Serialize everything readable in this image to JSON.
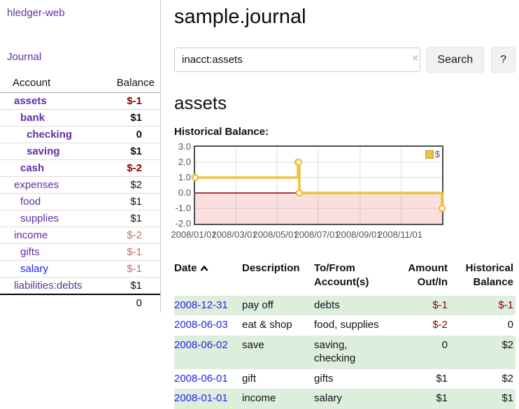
{
  "app": {
    "title": "hledger-web"
  },
  "nav": {
    "journal": "Journal"
  },
  "sidebar": {
    "header": {
      "account": "Account",
      "balance": "Balance"
    },
    "accounts": [
      {
        "name": "assets",
        "indent": 1,
        "bold": true,
        "balance": "$-1",
        "balance_style": "neg-strong"
      },
      {
        "name": "bank",
        "indent": 2,
        "bold": true,
        "balance": "$1",
        "balance_style": "pos"
      },
      {
        "name": "checking",
        "indent": 3,
        "bold": true,
        "balance": "0",
        "balance_style": "pos"
      },
      {
        "name": "saving",
        "indent": 3,
        "bold": true,
        "balance": "$1",
        "balance_style": "pos"
      },
      {
        "name": "cash",
        "indent": 2,
        "bold": true,
        "balance": "$-2",
        "balance_style": "neg-strong"
      },
      {
        "name": "expenses",
        "indent": 1,
        "bold": false,
        "balance": "$2",
        "balance_style": "pos"
      },
      {
        "name": "food",
        "indent": 2,
        "bold": false,
        "balance": "$1",
        "balance_style": "pos"
      },
      {
        "name": "supplies",
        "indent": 2,
        "bold": false,
        "balance": "$1",
        "balance_style": "pos"
      },
      {
        "name": "income",
        "indent": 1,
        "bold": false,
        "balance": "$-2",
        "balance_style": "neg-soft"
      },
      {
        "name": "gifts",
        "indent": 2,
        "bold": false,
        "balance": "$-1",
        "balance_style": "neg-soft"
      },
      {
        "name": "salary",
        "indent": 2,
        "bold": false,
        "color": "blue",
        "balance": "$-1",
        "balance_style": "neg-soft"
      },
      {
        "name": "liabilities:debts",
        "indent": 1,
        "bold": false,
        "balance": "$1",
        "balance_style": "pos"
      }
    ],
    "total": "0"
  },
  "page": {
    "title": "sample.journal"
  },
  "search": {
    "value": "inacct:assets",
    "clear": "×",
    "search_label": "Search",
    "help_label": "?"
  },
  "account_view": {
    "heading": "assets",
    "chart_title": "Historical Balance:"
  },
  "chart_data": {
    "type": "line",
    "line_style": "step",
    "title": "Historical Balance",
    "series": [
      {
        "name": "$",
        "color": "#edc240",
        "points": [
          [
            "2008-01-01",
            1
          ],
          [
            "2008-06-01",
            2
          ],
          [
            "2008-06-02",
            2
          ],
          [
            "2008-06-03",
            0
          ],
          [
            "2008-12-31",
            -1
          ]
        ]
      }
    ],
    "x_range": [
      "2008-01-01",
      "2008-12-31"
    ],
    "x_ticks": [
      "2008/01/01",
      "2008/03/01",
      "2008/05/01",
      "2008/07/01",
      "2008/09/01",
      "2008/11/01"
    ],
    "y_ticks": [
      "3.0",
      "2.0",
      "1.0",
      "0.0",
      "-1.0",
      "-2.0"
    ],
    "ylim": [
      -2,
      3
    ],
    "grid": true,
    "legend_position": "top-right",
    "negative_region_color": "#fbdfdf",
    "zero_line_color": "#8f0000"
  },
  "register": {
    "columns": {
      "date": "Date",
      "description": "Description",
      "accounts": "To/From Account(s)",
      "amount": "Amount Out/In",
      "balance": "Historical Balance"
    },
    "sort": {
      "column": "Date",
      "direction": "ascending"
    },
    "rows": [
      {
        "date": "2008-12-31",
        "description": "pay off",
        "accounts": "debts",
        "amount": "$-1",
        "amount_neg": true,
        "balance": "$-1",
        "balance_neg": true,
        "shaded": true
      },
      {
        "date": "2008-06-03",
        "description": "eat & shop",
        "accounts": "food, supplies",
        "amount": "$-2",
        "amount_neg": true,
        "balance": "0",
        "balance_neg": false,
        "shaded": false
      },
      {
        "date": "2008-06-02",
        "description": "save",
        "accounts": "saving, checking",
        "amount": "0",
        "amount_neg": false,
        "balance": "$2",
        "balance_neg": false,
        "shaded": true
      },
      {
        "date": "2008-06-01",
        "description": "gift",
        "accounts": "gifts",
        "amount": "$1",
        "amount_neg": false,
        "balance": "$2",
        "balance_neg": false,
        "shaded": false
      },
      {
        "date": "2008-01-01",
        "description": "income",
        "accounts": "salary",
        "amount": "$1",
        "amount_neg": false,
        "balance": "$1",
        "balance_neg": false,
        "shaded": true
      }
    ]
  },
  "colors": {
    "link_purple": "#6030a0",
    "link_blue": "#2222ee",
    "negative_strong": "#8b0000",
    "negative_soft": "#bd7070",
    "row_shaded": "#ddeedd",
    "chart_line": "#edc240",
    "chart_zero": "#8f0000",
    "chart_negative_region": "#fbdfdf"
  }
}
